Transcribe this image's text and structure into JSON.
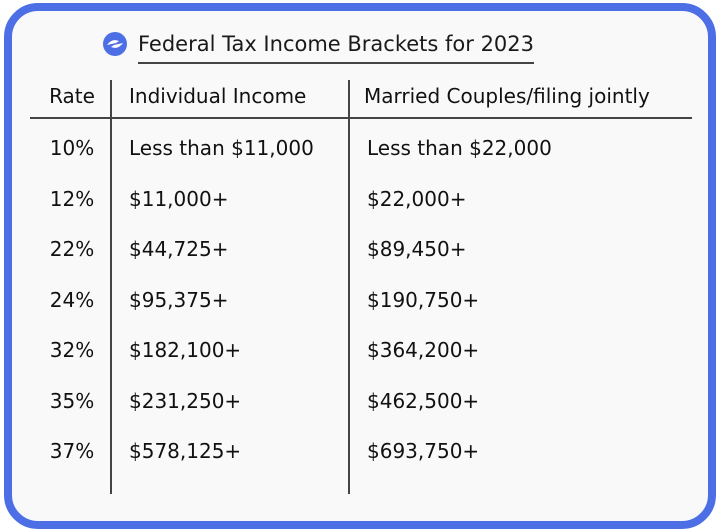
{
  "title": "Federal Tax Income Brackets for 2023",
  "logo_icon": "blue-circle-swoosh-icon",
  "colors": {
    "border": "#4d6fe6",
    "accent": "#4d6fe6"
  },
  "headers": [
    "Rate",
    "Individual Income",
    "Married Couples/filing jointly"
  ],
  "rows": [
    [
      "10%",
      "Less than $11,000",
      "Less than $22,000"
    ],
    [
      "12%",
      "$11,000+",
      "$22,000+"
    ],
    [
      "22%",
      "$44,725+",
      "$89,450+"
    ],
    [
      "24%",
      "$95,375+",
      "$190,750+"
    ],
    [
      "32%",
      "$182,100+",
      "$364,200+"
    ],
    [
      "35%",
      "$231,250+",
      "$462,500+"
    ],
    [
      "37%",
      "$578,125+",
      "$693,750+"
    ]
  ]
}
